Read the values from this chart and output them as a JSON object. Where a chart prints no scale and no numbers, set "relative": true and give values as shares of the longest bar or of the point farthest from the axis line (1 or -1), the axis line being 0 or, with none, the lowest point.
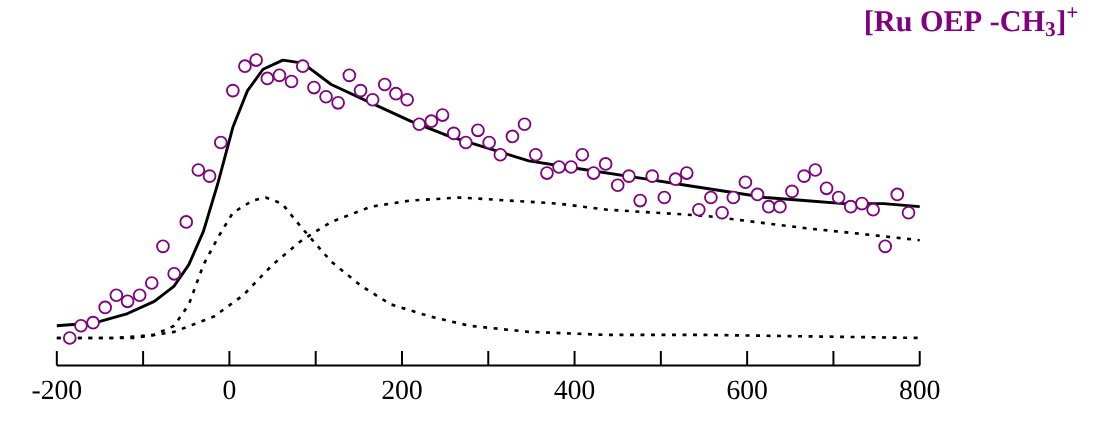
{
  "chart_data": {
    "type": "line",
    "title": "**[Ru OEP -CH$_{3}$]$^{+}$**",
    "relative": true,
    "xlim": [
      -200,
      800
    ],
    "xticks": [
      -200,
      {
        "value": -100,
        "label": null
      },
      0,
      {
        "value": 100,
        "label": null
      },
      200,
      {
        "value": 300,
        "label": null
      },
      400,
      {
        "value": 500,
        "label": null
      },
      600,
      {
        "value": 700,
        "label": null
      },
      800
    ],
    "series": [
      {
        "color": "#000000",
        "line_style": "dotted",
        "marker": "none",
        "x": [
          -200,
          -133,
          -87,
          -64,
          -47,
          -30,
          -13,
          4,
          27,
          42,
          61,
          84,
          118,
          153,
          187,
          233,
          278,
          347,
          438,
          552,
          800
        ],
        "values": [
          0.09,
          0.09,
          0.1,
          0.13,
          0.2,
          0.33,
          0.42,
          0.5,
          0.54,
          0.55,
          0.53,
          0.45,
          0.34,
          0.26,
          0.2,
          0.16,
          0.13,
          0.11,
          0.1,
          0.1,
          0.09
        ]
      },
      {
        "color": "#000000",
        "line_style": "dotted",
        "marker": "none",
        "x": [
          -200,
          -110,
          -64,
          -18,
          16,
          50,
          84,
          118,
          164,
          210,
          267,
          324,
          381,
          438,
          495,
          552,
          609,
          666,
          735,
          800
        ],
        "values": [
          0.09,
          0.09,
          0.11,
          0.16,
          0.23,
          0.33,
          0.41,
          0.47,
          0.52,
          0.54,
          0.55,
          0.54,
          0.53,
          0.51,
          0.5,
          0.49,
          0.47,
          0.45,
          0.43,
          0.41
        ]
      },
      {
        "color": "#000000",
        "line_style": "solid",
        "marker": "none",
        "x": [
          -200,
          -155,
          -118,
          -87,
          -64,
          -47,
          -30,
          -13,
          4,
          21,
          39,
          62,
          85,
          118,
          164,
          210,
          255,
          301,
          347,
          392,
          438,
          484,
          529,
          575,
          621,
          666,
          712,
          758,
          800
        ],
        "values": [
          0.13,
          0.14,
          0.17,
          0.21,
          0.26,
          0.33,
          0.44,
          0.6,
          0.78,
          0.9,
          0.97,
          1.0,
          0.99,
          0.92,
          0.86,
          0.8,
          0.75,
          0.71,
          0.67,
          0.65,
          0.63,
          0.61,
          0.59,
          0.57,
          0.55,
          0.54,
          0.53,
          0.53,
          0.52
        ]
      },
      {
        "type": "scatter",
        "color": "#800080",
        "marker": "circle",
        "x": [
          -185,
          -172,
          -158,
          -144,
          -131,
          -118,
          -104,
          -90,
          -77,
          -64,
          -50,
          -36,
          -23,
          -10,
          4,
          18,
          31,
          44,
          58,
          72,
          85,
          98,
          112,
          126,
          139,
          152,
          166,
          180,
          193,
          206,
          220,
          234,
          247,
          260,
          274,
          288,
          301,
          314,
          328,
          342,
          355,
          368,
          382,
          396,
          409,
          422,
          436,
          450,
          463,
          476,
          490,
          504,
          517,
          530,
          544,
          558,
          571,
          584,
          598,
          612,
          625,
          638,
          652,
          666,
          679,
          692,
          706,
          720,
          733,
          746,
          760,
          774,
          787
        ],
        "values": [
          0.09,
          0.13,
          0.14,
          0.19,
          0.23,
          0.21,
          0.23,
          0.27,
          0.39,
          0.3,
          0.47,
          0.64,
          0.62,
          0.73,
          0.9,
          0.98,
          1.0,
          0.94,
          0.95,
          0.93,
          0.98,
          0.91,
          0.88,
          0.86,
          0.95,
          0.9,
          0.87,
          0.92,
          0.89,
          0.87,
          0.79,
          0.8,
          0.82,
          0.76,
          0.73,
          0.77,
          0.73,
          0.69,
          0.75,
          0.79,
          0.69,
          0.63,
          0.65,
          0.65,
          0.69,
          0.63,
          0.66,
          0.59,
          0.62,
          0.54,
          0.62,
          0.55,
          0.61,
          0.63,
          0.51,
          0.55,
          0.5,
          0.55,
          0.6,
          0.56,
          0.52,
          0.52,
          0.57,
          0.62,
          0.64,
          0.58,
          0.55,
          0.52,
          0.53,
          0.51,
          0.39,
          0.56,
          0.5
        ]
      }
    ]
  }
}
